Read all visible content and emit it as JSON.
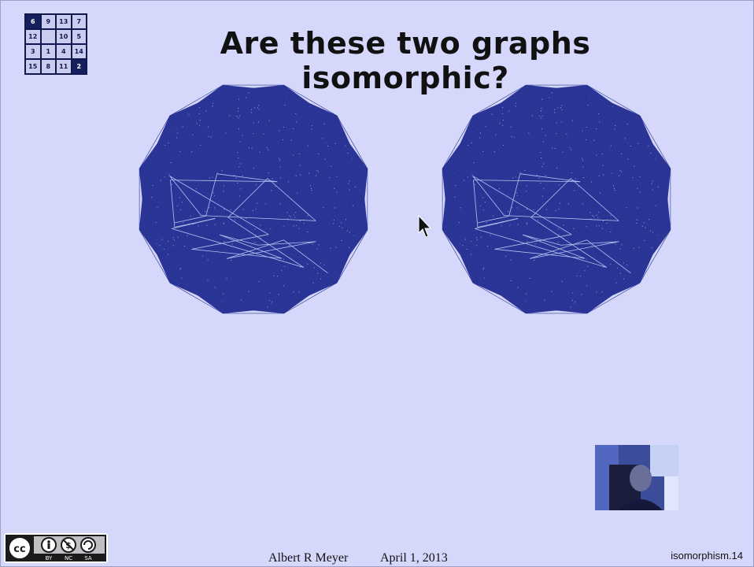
{
  "slide": {
    "title": "Are these two graphs isomorphic?",
    "author": "Albert R Meyer",
    "date": "April 1, 2013",
    "slide_id": "isomorphism.14"
  },
  "logo": {
    "cells": [
      "6",
      "9",
      "13",
      "7",
      "12",
      "",
      "10",
      "5",
      "3",
      "1",
      "4",
      "14",
      "15",
      "8",
      "11",
      "2"
    ],
    "dark_cells": [
      0,
      15
    ]
  },
  "license": {
    "labels": [
      "BY",
      "NC",
      "SA"
    ],
    "cc_text": "cc"
  },
  "colors": {
    "background": "#d6d8fb",
    "graph_edges": "#2a3596",
    "graph_accent": "#b8c0f0"
  },
  "icons": {
    "cursor": "arrow-cursor-icon",
    "license": "creative-commons-icon"
  }
}
